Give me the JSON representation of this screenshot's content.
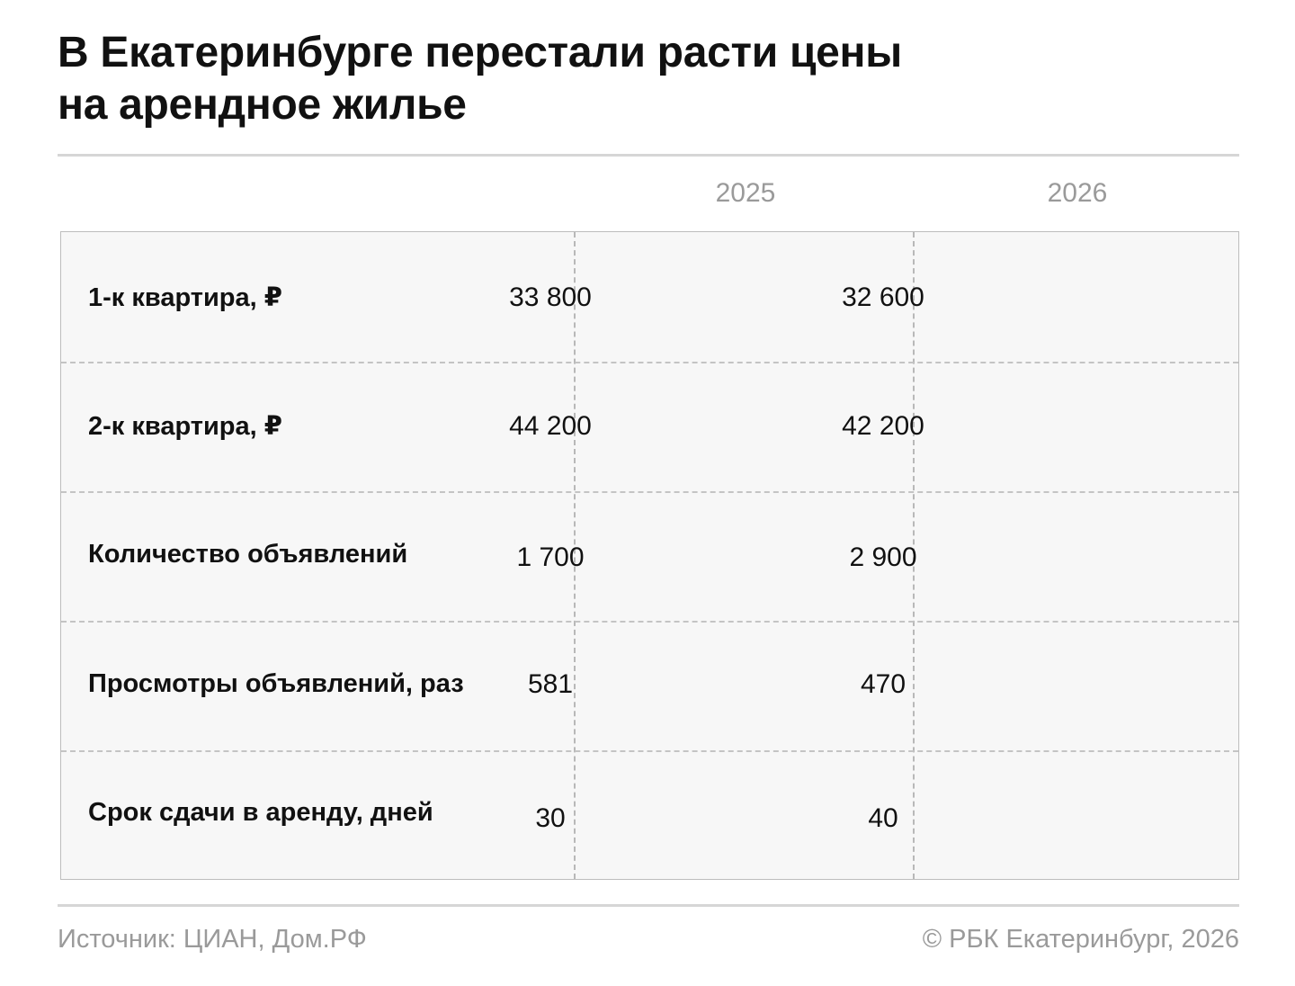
{
  "title_line1": "В Екатеринбурге перестали расти цены",
  "title_line2": "на арендное жилье",
  "source": "Источник: ЦИАН, Дом.РФ",
  "copyright": "© РБК Екатеринбург, 2026",
  "chart_data": {
    "type": "table",
    "title": "В Екатеринбурге перестали расти цены на арендное жилье",
    "columns": [
      "2025",
      "2026"
    ],
    "rows": [
      {
        "label": "1-к квартира, ₽",
        "values": [
          "33 800",
          "32 600"
        ]
      },
      {
        "label": "2-к квартира, ₽",
        "values": [
          "44 200",
          "42 200"
        ]
      },
      {
        "label": "Количество объявлений",
        "values": [
          "1 700",
          "2 900"
        ]
      },
      {
        "label": "Просмотры объявлений, раз",
        "values": [
          "581",
          "470"
        ]
      },
      {
        "label": "Срок сдачи в аренду, дней",
        "values": [
          "30",
          "40"
        ]
      }
    ]
  }
}
